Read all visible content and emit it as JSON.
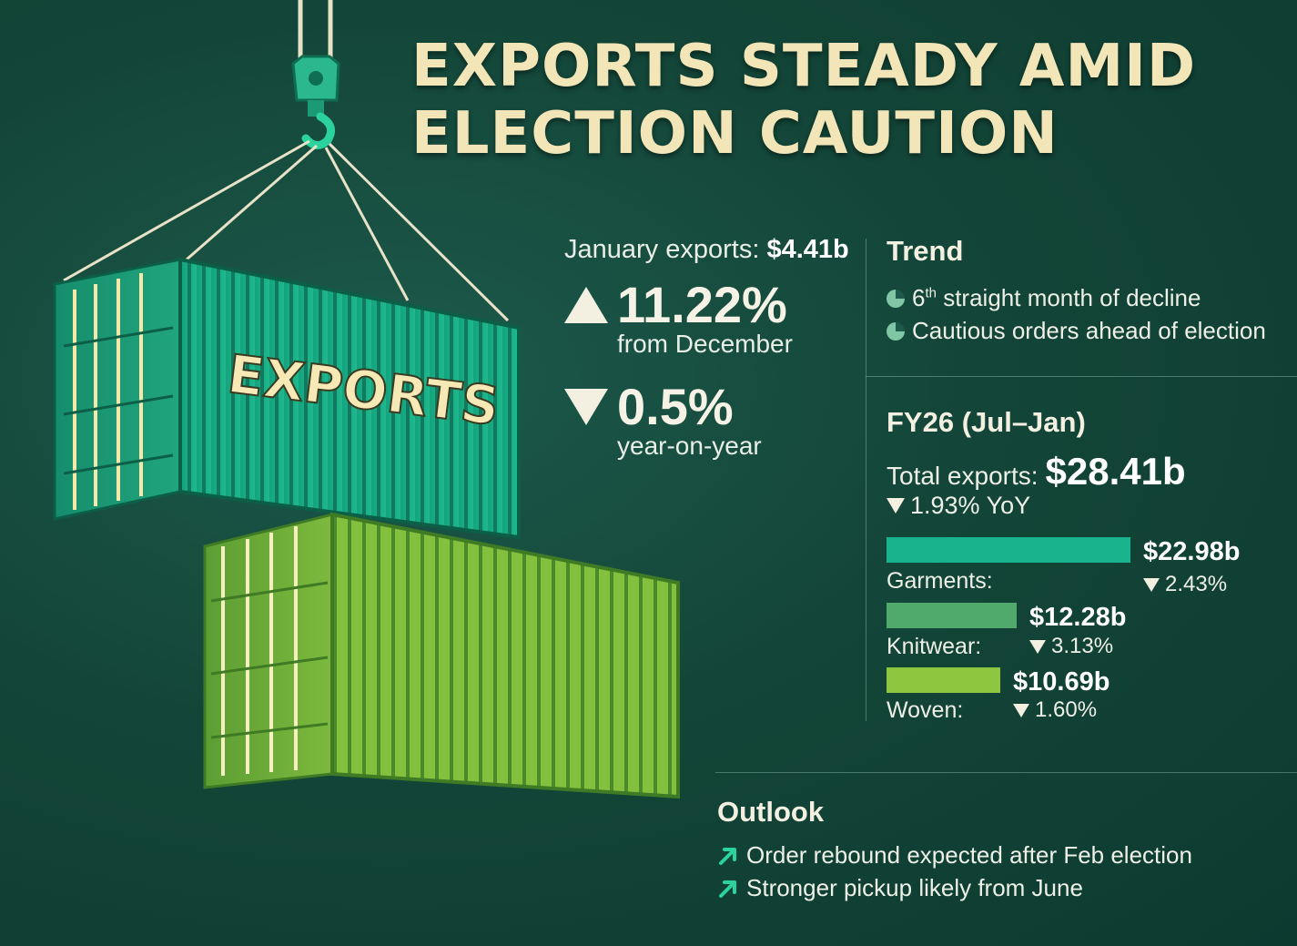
{
  "title": {
    "line1": "EXPORTS STEADY AMID",
    "line2": "ELECTION CAUTION"
  },
  "illustration": {
    "container_label": "EXPORTS"
  },
  "january": {
    "label": "January exports:",
    "value": "$4.41b",
    "mom_change": "11.22%",
    "mom_direction": "up",
    "mom_caption": "from December",
    "yoy_change": "0.5%",
    "yoy_direction": "down",
    "yoy_caption": "year-on-year"
  },
  "trend": {
    "heading": "Trend",
    "items": [
      {
        "prefix": "6",
        "superscript": "th",
        "text": " straight month of decline",
        "icon": "pie-icon"
      },
      {
        "text": "Cautious orders ahead of election",
        "icon": "pie-icon"
      }
    ]
  },
  "fy26": {
    "heading": "FY26 (Jul–Jan)",
    "total_label": "Total exports:",
    "total_value": "$28.41b",
    "total_change": "1.93% YoY",
    "categories": [
      {
        "label": "Garments:",
        "value": "$22.98b",
        "change": "2.43%",
        "amount": 22.98,
        "color": "#19b48e"
      },
      {
        "label": "Knitwear:",
        "value": "$12.28b",
        "change": "3.13%",
        "amount": 12.28,
        "color": "#4faa6c"
      },
      {
        "label": "Woven:",
        "value": "$10.69b",
        "change": "1.60%",
        "amount": 10.69,
        "color": "#8ec63f"
      }
    ]
  },
  "outlook": {
    "heading": "Outlook",
    "items": [
      {
        "text": "Order rebound expected after Feb election",
        "icon": "trend-up-icon"
      },
      {
        "text": "Stronger pickup likely from June",
        "icon": "trend-up-icon"
      }
    ]
  },
  "colors": {
    "background": "#134638",
    "title": "#f2e6b8",
    "accent_teal": "#19b48e",
    "accent_green": "#4faa6c",
    "accent_lime": "#8ec63f"
  }
}
